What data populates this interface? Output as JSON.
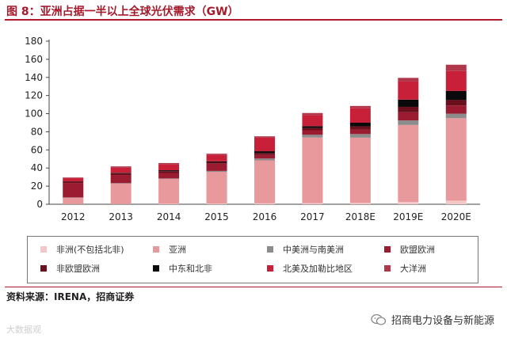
{
  "figure_title": "图 8：亚洲占据一半以上全球光伏需求（GW）",
  "source_note": "资料来源：IRENA，招商证券",
  "wechat_account": "招商电力设备与新能源",
  "watermark_text": "大数据观",
  "chart_data": {
    "type": "bar",
    "stacked": true,
    "title": "亚洲占据一半以上全球光伏需求（GW）",
    "xlabel": "",
    "ylabel": "",
    "ylim": [
      0,
      180
    ],
    "yticks": [
      0,
      20,
      40,
      60,
      80,
      100,
      120,
      140,
      160,
      180
    ],
    "grid": false,
    "legend_position": "bottom",
    "categories": [
      "2012",
      "2013",
      "2014",
      "2015",
      "2016",
      "2017",
      "2018E",
      "2019E",
      "2020E"
    ],
    "series": [
      {
        "name": "非洲(不包括北非)",
        "color": "#f4c7c9",
        "values": [
          0.2,
          0.3,
          0.5,
          0.8,
          1.0,
          1.2,
          1.5,
          2.5,
          4.0
        ]
      },
      {
        "name": "亚洲",
        "color": "#e8999b",
        "values": [
          7,
          22.5,
          27.5,
          35,
          47.5,
          72.5,
          72,
          85,
          91
        ]
      },
      {
        "name": "中美洲与南美洲",
        "color": "#8c8c8c",
        "values": [
          0.3,
          0.5,
          0.5,
          1.0,
          2.0,
          3.0,
          4.0,
          5.0,
          5.0
        ]
      },
      {
        "name": "欧盟欧洲",
        "color": "#9b1b30",
        "values": [
          16,
          9,
          6,
          8,
          4,
          5,
          5,
          9,
          9
        ]
      },
      {
        "name": "非欧盟欧洲",
        "color": "#6b0f1c",
        "values": [
          1.5,
          2.0,
          2.0,
          1.5,
          2.0,
          2.5,
          3.5,
          6.0,
          6.0
        ]
      },
      {
        "name": "中东和北非",
        "color": "#0a0a0a",
        "values": [
          0.3,
          0.5,
          1.0,
          1.0,
          2.0,
          2.0,
          4.0,
          8.0,
          10.0
        ]
      },
      {
        "name": "北美及加勒比地区",
        "color": "#c9203a",
        "values": [
          3.5,
          5.5,
          6.5,
          7.0,
          15.0,
          12.0,
          16.0,
          20.0,
          22.0
        ]
      },
      {
        "name": "大洋洲",
        "color": "#b0364a",
        "values": [
          0.7,
          1.5,
          1.5,
          1.5,
          1.5,
          2.5,
          2.5,
          4.0,
          7.0
        ]
      }
    ]
  }
}
